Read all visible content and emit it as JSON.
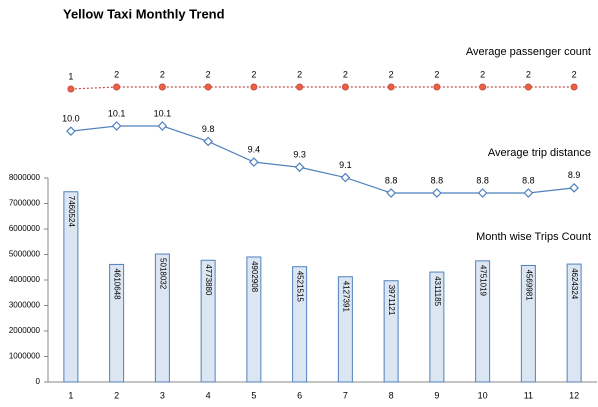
{
  "chart_data": {
    "type": "bar",
    "title": "Yellow Taxi Monthly Trend",
    "categories": [
      "1",
      "2",
      "3",
      "4",
      "5",
      "6",
      "7",
      "8",
      "9",
      "10",
      "11",
      "12"
    ],
    "ylim": [
      0,
      8000000
    ],
    "yticks": [
      0,
      1000000,
      2000000,
      3000000,
      4000000,
      5000000,
      6000000,
      7000000,
      8000000
    ],
    "series": [
      {
        "name": "Month wise Trips Count",
        "type": "bar",
        "color": "#4f81bd",
        "values": [
          7460524,
          4610648,
          5018032,
          4773880,
          4902908,
          4521515,
          4127391,
          3971121,
          4311185,
          4751019,
          4569981,
          4624324
        ]
      },
      {
        "name": "Average trip distance",
        "type": "line",
        "color": "#4f81bd",
        "values": [
          10.0,
          10.1,
          10.1,
          9.8,
          9.4,
          9.3,
          9.1,
          8.8,
          8.8,
          8.8,
          8.8,
          8.9
        ],
        "value_labels": [
          "10.0",
          "10.1",
          "10.1",
          "9.8",
          "9.4",
          "9.3",
          "9.1",
          "8.8",
          "8.8",
          "8.8",
          "8.8",
          "8.9"
        ]
      },
      {
        "name": "Average passenger count",
        "type": "line",
        "color": "#c0504d",
        "values": [
          1,
          2,
          2,
          2,
          2,
          2,
          2,
          2,
          2,
          2,
          2,
          2
        ]
      }
    ]
  }
}
